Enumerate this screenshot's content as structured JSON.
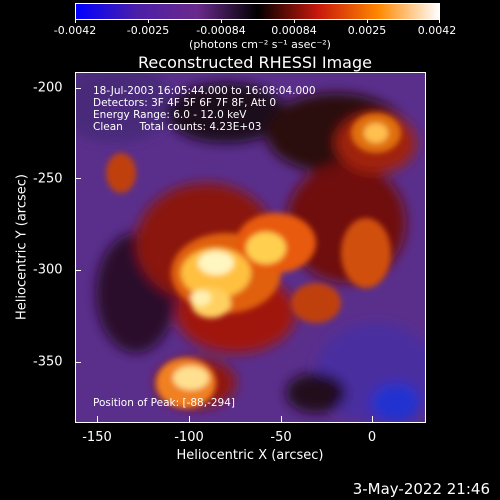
{
  "colorbar": {
    "ticks": [
      "-0.0042",
      "-0.0025",
      "-0.00084",
      "0.00084",
      "0.0025",
      "0.0042"
    ],
    "units": "(photons cm⁻² s⁻¹ asec⁻²)",
    "colors": [
      "#0000ff",
      "#4b1fa8",
      "#6a2a8c",
      "#000000",
      "#c8180c",
      "#ff8800",
      "#ffffff"
    ]
  },
  "title": "Reconstructed RHESSI Image",
  "info": {
    "time": "18-Jul-2003 16:05:44.000 to 16:08:04.000",
    "detectors": "Detectors: 3F 4F 5F 6F 7F 8F, Att 0",
    "energy": "Energy Range: 6.0 - 12.0 keV",
    "clean": "Clean     Total counts: 4.23E+03"
  },
  "peak": "Position of Peak: [-88,-294]",
  "axes": {
    "xlabel": "Heliocentric X (arcsec)",
    "ylabel": "Heliocentric Y (arcsec)",
    "xticks": [
      "-150",
      "-100",
      "-50",
      "0"
    ],
    "yticks": [
      "-200",
      "-250",
      "-300",
      "-350"
    ],
    "xrange": [
      -163,
      28
    ],
    "yrange": [
      -193,
      -384
    ]
  },
  "timestamp": "3-May-2022 21:46"
}
